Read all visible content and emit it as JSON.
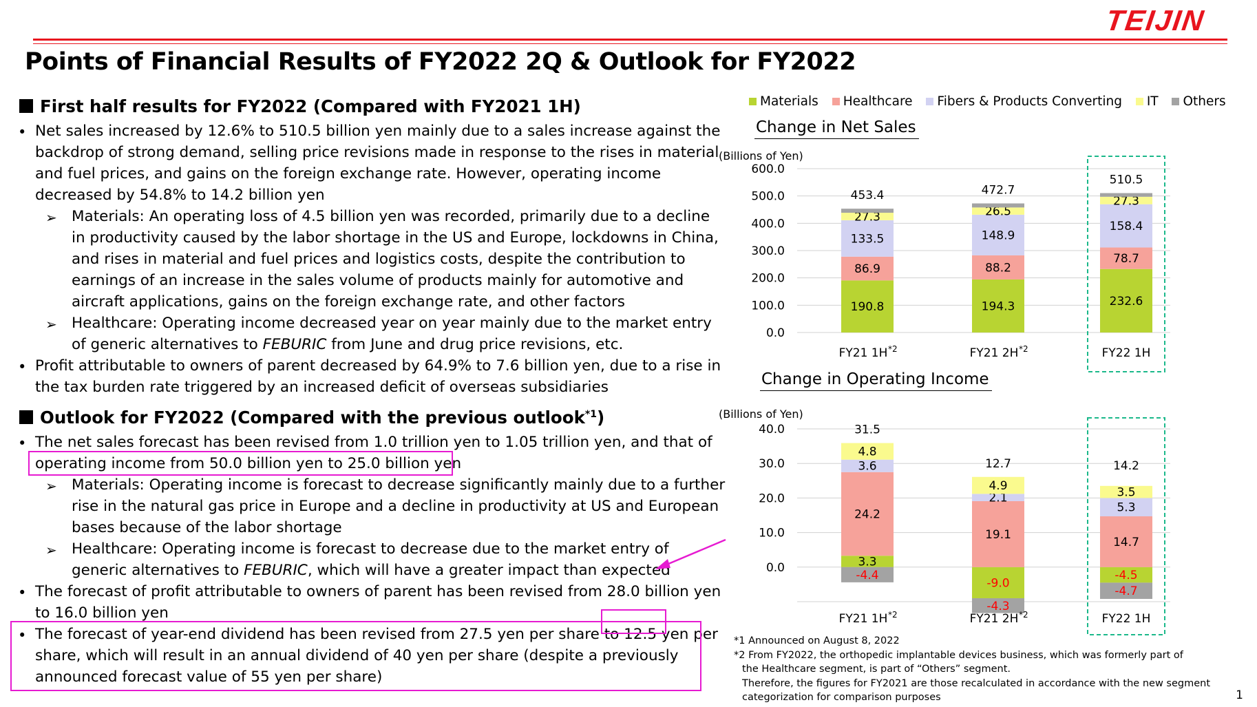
{
  "header": {
    "logo": "TEIJIN",
    "title": "Points of Financial Results of FY2022 2Q & Outlook for FY2022"
  },
  "section1": {
    "heading": "First half results for FY2022 (Compared with FY2021 1H)",
    "b1": {
      "l1": "Net sales increased by 12.6% to 510.5 billion yen mainly due to a sales increase against the",
      "l2": "backdrop of strong demand, selling price revisions made in response to the rises in material",
      "l3": "and fuel prices, and gains on the foreign exchange rate. However, operating income",
      "l4": "decreased by 54.8% to 14.2 billion yen"
    },
    "s1": {
      "l1": "Materials: An operating loss of 4.5 billion yen was recorded, primarily due to a decline",
      "l2": "in productivity caused by the labor shortage in the US and Europe, lockdowns in China,",
      "l3": "and rises in material and fuel prices and logistics costs, despite the contribution to",
      "l4": "earnings of an increase in the sales volume of products mainly for automotive and",
      "l5": "aircraft applications, gains on the foreign exchange rate, and other factors"
    },
    "s2": {
      "l1": "Healthcare: Operating income decreased year on year mainly due to the market entry",
      "l2a": "of generic alternatives to ",
      "l2b": "FEBURIC",
      "l2c": " from June and drug price revisions, etc."
    },
    "b2": {
      "l1": "Profit attributable to owners of parent decreased by 64.9% to 7.6 billion yen, due to a rise in",
      "l2": "the tax burden rate triggered by an increased deficit of overseas subsidiaries"
    }
  },
  "section2": {
    "heading": "Outlook for FY2022 (Compared with the previous outlook",
    "heading_sup": "*1",
    "heading_end": ")",
    "b1": {
      "l1": "The net sales forecast has been revised from 1.0 trillion yen to 1.05 trillion yen, and that of",
      "l2": "operating income from 50.0 billion yen to 25.0 billion yen"
    },
    "s1": {
      "l1": "Materials: Operating income is forecast to decrease significantly mainly due to a further",
      "l2": "rise in the natural gas price in Europe and a decline in productivity at US and  European",
      "l3": "bases because of the labor shortage"
    },
    "s2": {
      "l1": "Healthcare: Operating income is forecast to decrease due to the market entry of",
      "l2a": "generic alternatives to ",
      "l2b": "FEBURIC",
      "l2c": ", which will have a greater impact than expected"
    },
    "b2": {
      "l1": "The forecast of profit attributable to owners of parent has been revised from 28.0 billion yen",
      "l2": "to 16.0 billion yen"
    },
    "b3": {
      "l1a": "The forecast of year-end dividend has been revised from 27.5 yen per share to ",
      "l1b": "12.5 yen",
      "l1c": " per",
      "l2": "share, which will result in an annual dividend of 40 yen per share (despite a previously",
      "l3": "announced forecast value of 55 yen per share)"
    }
  },
  "bullet_glyph": "•",
  "arrow_glyph": "➢",
  "legend": [
    {
      "name": "Materials",
      "color": "#b8d432"
    },
    {
      "name": "Healthcare",
      "color": "#f6a29a"
    },
    {
      "name": "Fibers & Products Converting",
      "color": "#d2d2f2"
    },
    {
      "name": "IT",
      "color": "#fafa8e"
    },
    {
      "name": "Others",
      "color": "#a3a3a3"
    }
  ],
  "chart_data": [
    {
      "type": "bar",
      "stacked": true,
      "title": "Change in Net Sales",
      "ylabel": "(Billions of Yen)",
      "ylim": [
        0,
        600
      ],
      "yticks": [
        "600.0",
        "500.0",
        "400.0",
        "300.0",
        "200.0",
        "100.0",
        "0.0"
      ],
      "categories": [
        {
          "label": "FY21 1H",
          "sup": "*2"
        },
        {
          "label": "FY21 2H",
          "sup": "*2"
        },
        {
          "label": "FY22 1H",
          "sup": ""
        }
      ],
      "totals": [
        "453.4",
        "472.7",
        "510.5"
      ],
      "series": [
        {
          "name": "Materials",
          "values": [
            190.8,
            194.3,
            232.6
          ],
          "labels": [
            "190.8",
            "194.3",
            "232.6"
          ]
        },
        {
          "name": "Healthcare",
          "values": [
            86.9,
            88.2,
            78.7
          ],
          "labels": [
            "86.9",
            "88.2",
            "78.7"
          ]
        },
        {
          "name": "Fibers & Products Converting",
          "values": [
            133.5,
            148.9,
            158.4
          ],
          "labels": [
            "133.5",
            "148.9",
            "158.4"
          ]
        },
        {
          "name": "IT",
          "values": [
            27.3,
            26.5,
            27.3
          ],
          "labels": [
            "27.3",
            "26.5",
            "27.3"
          ]
        },
        {
          "name": "Others",
          "values": [
            14.9,
            14.8,
            13.5
          ],
          "labels": [
            "",
            "",
            ""
          ]
        }
      ]
    },
    {
      "type": "bar",
      "stacked": true,
      "title": "Change in Operating Income",
      "ylabel": "(Billions of Yen)",
      "ylim": [
        -10,
        40
      ],
      "yticks": [
        "40.0",
        "30.0",
        "20.0",
        "10.0",
        "0.0"
      ],
      "categories": [
        {
          "label": "FY21 1H",
          "sup": "*2"
        },
        {
          "label": "FY21 2H",
          "sup": "*2"
        },
        {
          "label": "FY22 1H",
          "sup": ""
        }
      ],
      "totals": [
        "31.5",
        "12.7",
        "14.2"
      ],
      "series": [
        {
          "name": "Materials",
          "values": [
            3.3,
            -9.0,
            -4.5
          ],
          "labels": [
            "3.3",
            "-9.0",
            "-4.5"
          ]
        },
        {
          "name": "Healthcare",
          "values": [
            24.2,
            19.1,
            14.7
          ],
          "labels": [
            "24.2",
            "19.1",
            "14.7"
          ]
        },
        {
          "name": "Fibers & Products Converting",
          "values": [
            3.6,
            2.1,
            5.3
          ],
          "labels": [
            "3.6",
            "2.1",
            "5.3"
          ]
        },
        {
          "name": "IT",
          "values": [
            4.8,
            4.9,
            3.5
          ],
          "labels": [
            "4.8",
            "4.9",
            "3.5"
          ]
        },
        {
          "name": "Others",
          "values": [
            -4.4,
            -4.3,
            -4.7
          ],
          "labels": [
            "-4.4",
            "-4.3",
            "-4.7"
          ]
        }
      ]
    }
  ],
  "footnotes": {
    "f1": "*1 Announced on August 8, 2022",
    "f2a": "*2 From FY2022, the orthopedic implantable devices business, which was formerly part of",
    "f2b": "the Healthcare segment, is part of  “Others” segment.",
    "f2c": "Therefore, the figures for FY2021 are those recalculated in accordance with the new segment",
    "f2d": "categorization for comparison purposes"
  },
  "page_number": "1",
  "colors": {
    "brand_red": "#e8141e",
    "highlight": "#e61ad1",
    "negative_label": "#ff0000",
    "highlight_box_dashed": "#1ab88a"
  }
}
